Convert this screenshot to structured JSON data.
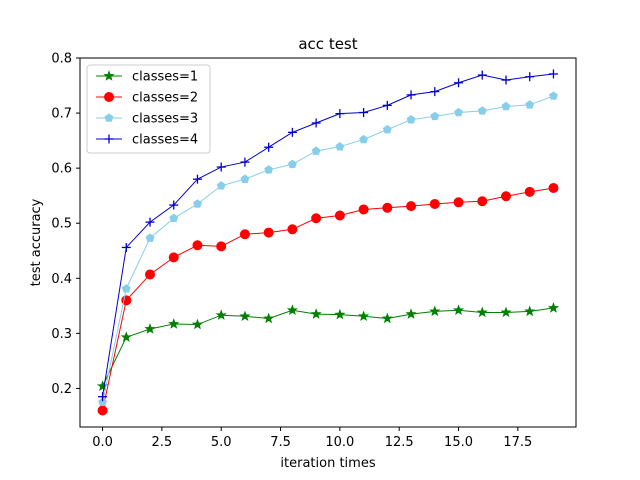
{
  "chart_data": {
    "type": "line",
    "title": "acc test",
    "xlabel": "iteration times",
    "ylabel": "test accuracy",
    "xlim": [
      -0.95,
      19.95
    ],
    "ylim": [
      0.13,
      0.8
    ],
    "xticks": [
      0,
      2.5,
      5,
      7.5,
      10,
      12.5,
      15,
      17.5
    ],
    "xtick_labels": [
      "0.0",
      "2.5",
      "5.0",
      "7.5",
      "10.0",
      "12.5",
      "15.0",
      "17.5"
    ],
    "yticks": [
      0.2,
      0.3,
      0.4,
      0.5,
      0.6,
      0.7,
      0.8
    ],
    "ytick_labels": [
      "0.2",
      "0.3",
      "0.4",
      "0.5",
      "0.6",
      "0.7",
      "0.8"
    ],
    "grid": false,
    "legend_position": "top-left",
    "x": [
      0,
      1,
      2,
      3,
      4,
      5,
      6,
      7,
      8,
      9,
      10,
      11,
      12,
      13,
      14,
      15,
      16,
      17,
      18,
      19
    ],
    "series": [
      {
        "name": "classes=1",
        "color": "#008000",
        "marker": "star",
        "values": [
          0.204,
          0.293,
          0.308,
          0.317,
          0.316,
          0.333,
          0.331,
          0.327,
          0.342,
          0.335,
          0.334,
          0.331,
          0.327,
          0.335,
          0.34,
          0.342,
          0.338,
          0.338,
          0.34,
          0.346
        ]
      },
      {
        "name": "classes=2",
        "color": "#ff0000",
        "marker": "circle",
        "values": [
          0.16,
          0.36,
          0.407,
          0.438,
          0.46,
          0.458,
          0.48,
          0.483,
          0.489,
          0.509,
          0.514,
          0.525,
          0.528,
          0.531,
          0.535,
          0.538,
          0.54,
          0.549,
          0.557,
          0.564
        ]
      },
      {
        "name": "classes=3",
        "color": "#87ceeb",
        "marker": "pentagon",
        "values": [
          0.175,
          0.381,
          0.473,
          0.509,
          0.535,
          0.568,
          0.58,
          0.597,
          0.607,
          0.631,
          0.639,
          0.652,
          0.67,
          0.688,
          0.694,
          0.701,
          0.704,
          0.712,
          0.715,
          0.731
        ]
      },
      {
        "name": "classes=4",
        "color": "#0000cd",
        "marker": "plus",
        "values": [
          0.185,
          0.456,
          0.502,
          0.533,
          0.58,
          0.602,
          0.611,
          0.638,
          0.665,
          0.682,
          0.699,
          0.701,
          0.714,
          0.733,
          0.739,
          0.755,
          0.769,
          0.76,
          0.766,
          0.771
        ]
      }
    ]
  }
}
